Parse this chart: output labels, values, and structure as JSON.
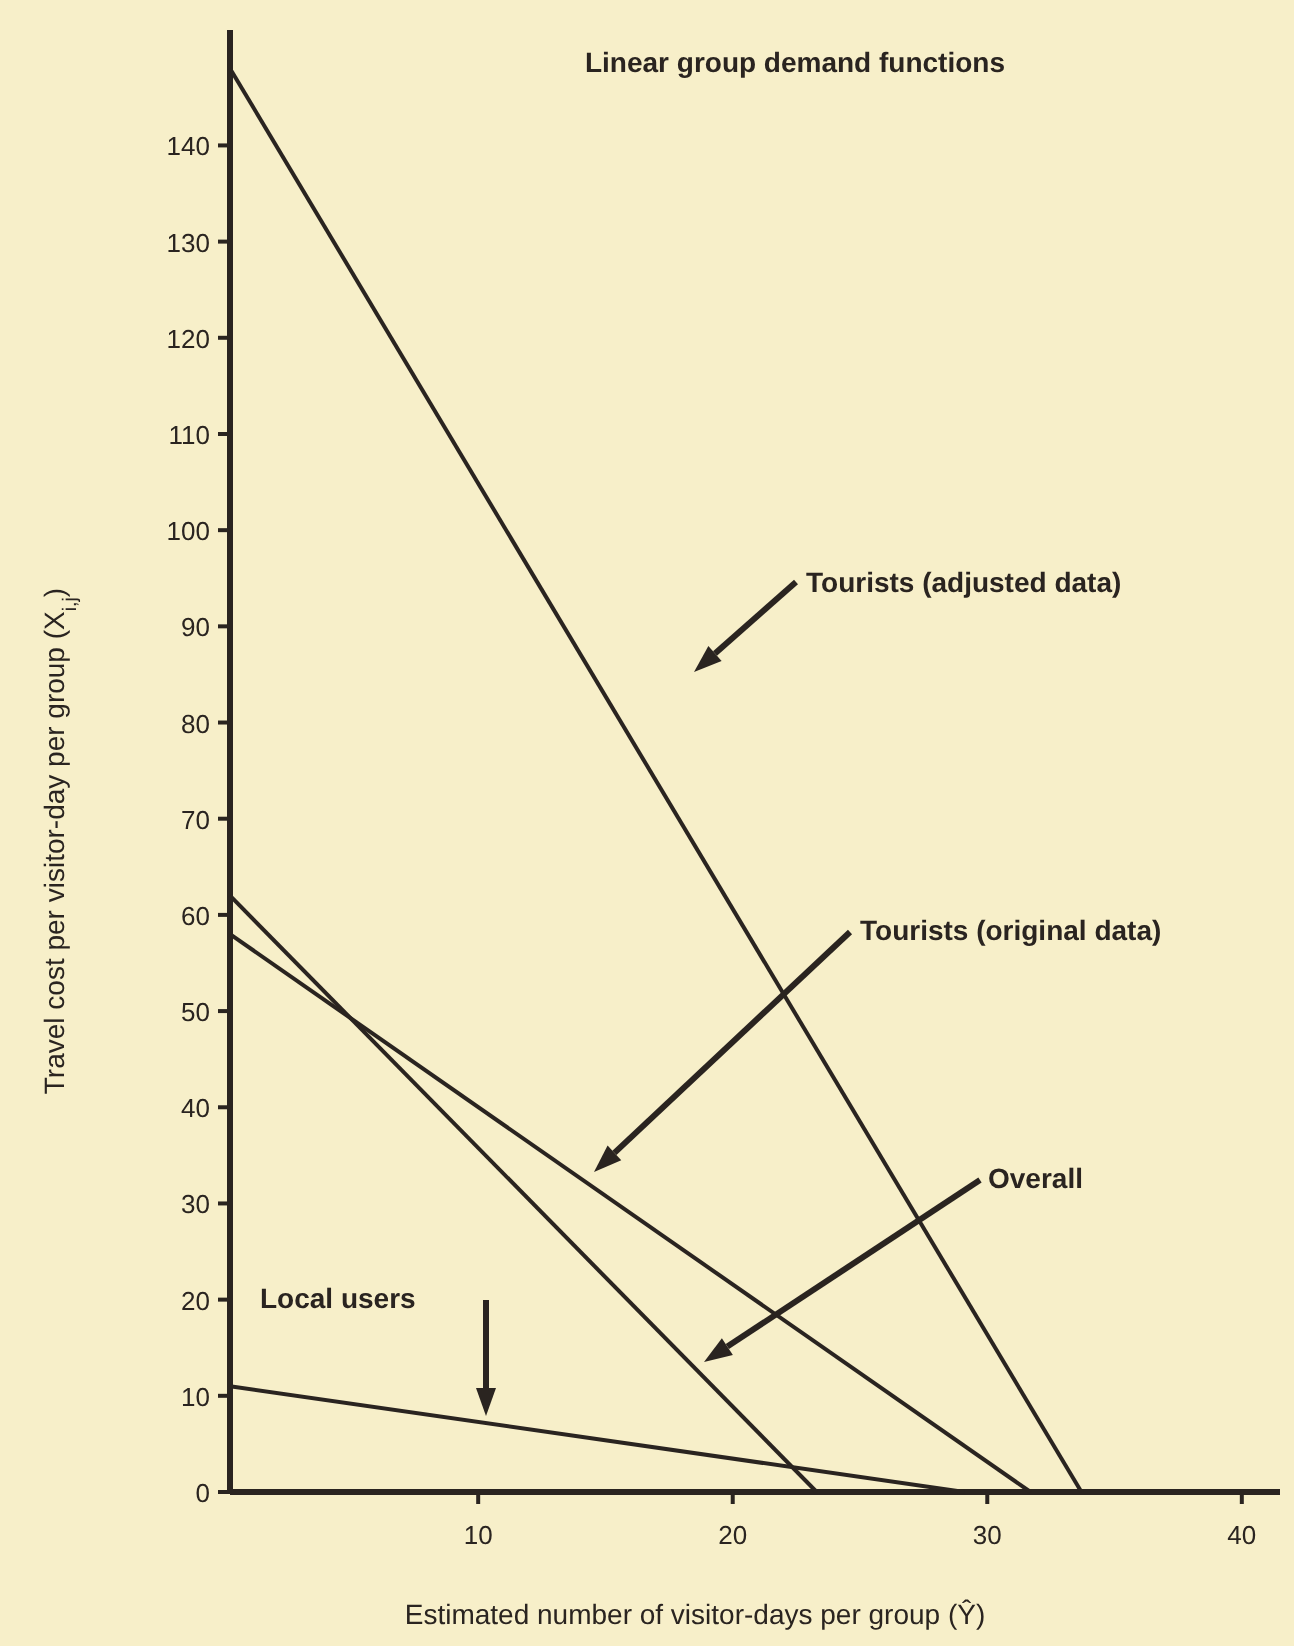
{
  "chart_data": {
    "type": "line",
    "title": "Linear group demand functions",
    "xlabel": "Estimated number of visitor-days per group (Ŷ)",
    "ylabel": "Travel cost per visitor-day per group (X$_{i,j}$)",
    "xlim": [
      0.25,
      41.5
    ],
    "xticks": [
      10,
      20,
      30,
      40
    ],
    "ylim": [
      0,
      152
    ],
    "yticks": [
      0,
      10,
      20,
      30,
      40,
      50,
      60,
      70,
      80,
      90,
      100,
      110,
      120,
      130,
      140
    ],
    "grid": false,
    "marker": "none",
    "line_style": "solid",
    "series": [
      {
        "color": "#2a2420",
        "x": [
          0.25,
          33.7
        ],
        "values": [
          148,
          0
        ]
      },
      {
        "color": "#2a2420",
        "x": [
          0.25,
          31.7
        ],
        "values": [
          58,
          0
        ]
      },
      {
        "color": "#2a2420",
        "x": [
          0.25,
          23.3
        ],
        "values": [
          62,
          0
        ]
      },
      {
        "color": "#2a2420",
        "x": [
          0.25,
          29.1
        ],
        "values": [
          11,
          0
        ]
      }
    ],
    "annotations": [
      "Tourists (adjusted data)",
      "Tourists (original data)",
      "Overall",
      "Local users"
    ]
  }
}
